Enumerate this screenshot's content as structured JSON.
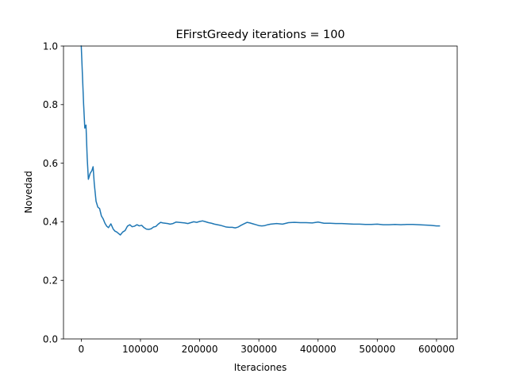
{
  "chart_data": {
    "type": "line",
    "title": "EFirstGreedy iterations = 100",
    "xlabel": "Iteraciones",
    "ylabel": "Novedad",
    "xlim": [
      -30000,
      635000
    ],
    "ylim": [
      0.0,
      1.0
    ],
    "xticks": [
      0,
      100000,
      200000,
      300000,
      400000,
      500000,
      600000
    ],
    "xtick_labels": [
      "0",
      "100000",
      "200000",
      "300000",
      "400000",
      "500000",
      "600000"
    ],
    "yticks": [
      0.0,
      0.2,
      0.4,
      0.6,
      0.8,
      1.0
    ],
    "ytick_labels": [
      "0.0",
      "0.2",
      "0.4",
      "0.6",
      "0.8",
      "1.0"
    ],
    "grid": false,
    "line_color": "#1f77b4",
    "series": [
      {
        "x": [
          0,
          2000,
          4000,
          6000,
          8000,
          10000,
          12000,
          15000,
          18000,
          20000,
          22000,
          25000,
          28000,
          31000,
          34000,
          37000,
          40000,
          43000,
          46000,
          50000,
          54000,
          57000,
          60000,
          63000,
          66000,
          70000,
          74000,
          78000,
          82000,
          86000,
          90000,
          94000,
          98000,
          102000,
          106000,
          110000,
          114000,
          118000,
          122000,
          126000,
          130000,
          134000,
          138000,
          142000,
          146000,
          150000,
          155000,
          160000,
          165000,
          170000,
          175000,
          180000,
          185000,
          190000,
          195000,
          200000,
          205000,
          210000,
          215000,
          220000,
          225000,
          230000,
          235000,
          240000,
          245000,
          250000,
          255000,
          260000,
          265000,
          270000,
          275000,
          280000,
          285000,
          290000,
          295000,
          300000,
          305000,
          310000,
          315000,
          320000,
          325000,
          330000,
          340000,
          350000,
          360000,
          370000,
          380000,
          390000,
          400000,
          410000,
          420000,
          430000,
          440000,
          450000,
          460000,
          470000,
          480000,
          490000,
          500000,
          510000,
          520000,
          530000,
          540000,
          550000,
          560000,
          570000,
          580000,
          590000,
          600000,
          605000
        ],
        "y": [
          1.0,
          0.9,
          0.8,
          0.72,
          0.73,
          0.62,
          0.545,
          0.565,
          0.575,
          0.588,
          0.53,
          0.47,
          0.45,
          0.445,
          0.42,
          0.41,
          0.395,
          0.385,
          0.38,
          0.393,
          0.375,
          0.368,
          0.365,
          0.36,
          0.355,
          0.365,
          0.37,
          0.385,
          0.39,
          0.383,
          0.385,
          0.39,
          0.386,
          0.388,
          0.38,
          0.375,
          0.374,
          0.376,
          0.382,
          0.384,
          0.392,
          0.398,
          0.396,
          0.395,
          0.394,
          0.392,
          0.394,
          0.399,
          0.398,
          0.397,
          0.396,
          0.394,
          0.397,
          0.4,
          0.398,
          0.401,
          0.403,
          0.4,
          0.397,
          0.395,
          0.392,
          0.39,
          0.388,
          0.385,
          0.382,
          0.381,
          0.381,
          0.379,
          0.382,
          0.388,
          0.393,
          0.398,
          0.396,
          0.393,
          0.39,
          0.387,
          0.386,
          0.387,
          0.39,
          0.392,
          0.393,
          0.394,
          0.392,
          0.397,
          0.398,
          0.397,
          0.397,
          0.396,
          0.399,
          0.395,
          0.395,
          0.394,
          0.394,
          0.393,
          0.392,
          0.392,
          0.391,
          0.391,
          0.392,
          0.39,
          0.39,
          0.391,
          0.39,
          0.391,
          0.391,
          0.39,
          0.389,
          0.388,
          0.386,
          0.386
        ]
      }
    ]
  }
}
